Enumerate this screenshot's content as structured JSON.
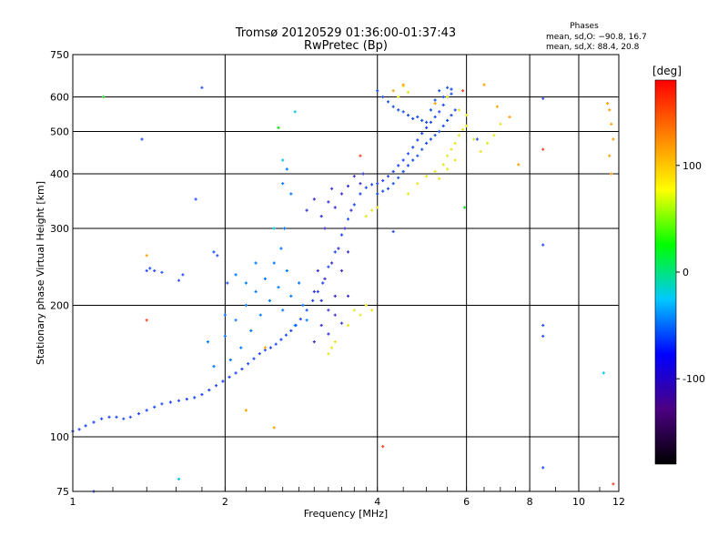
{
  "chart_data": {
    "type": "scatter",
    "title": "Tromsø 20120529 01:36:00-01:37:43",
    "subtitle": "RwPretec (Bp)",
    "xlabel": "Frequency [MHz]",
    "ylabel": "Stationary phase Virtual Height [km]",
    "x_scale": "log",
    "y_scale": "log",
    "xlim": [
      1,
      12
    ],
    "ylim": [
      75,
      750
    ],
    "x_ticks": [
      1,
      2,
      4,
      6,
      8,
      10,
      12
    ],
    "y_ticks": [
      75,
      100,
      200,
      300,
      400,
      500,
      600,
      750
    ],
    "grid": true,
    "phases_box": {
      "title": "Phases",
      "line1": "mean, sd,O: −90.8, 16.7",
      "line2": "mean, sd,X:  88.4, 20.8"
    },
    "colorbar": {
      "label": "[deg]",
      "range": [
        -180,
        180
      ],
      "ticks": [
        100,
        0,
        -100
      ],
      "colors": [
        "#000000",
        "#4b0082",
        "#0000ff",
        "#00c8ff",
        "#00ff00",
        "#ffff00",
        "#ff8000",
        "#ff0000"
      ]
    },
    "series": [
      {
        "mode": "O",
        "color": "#1e46ff",
        "points": [
          [
            1.0,
            103
          ],
          [
            1.03,
            104
          ],
          [
            1.06,
            106
          ],
          [
            1.1,
            108
          ],
          [
            1.14,
            110
          ],
          [
            1.18,
            111
          ],
          [
            1.22,
            111
          ],
          [
            1.26,
            110
          ],
          [
            1.3,
            111
          ],
          [
            1.35,
            113
          ],
          [
            1.4,
            115
          ],
          [
            1.45,
            117
          ],
          [
            1.5,
            119
          ],
          [
            1.56,
            120
          ],
          [
            1.62,
            121
          ],
          [
            1.68,
            122
          ],
          [
            1.74,
            123
          ],
          [
            1.8,
            125
          ],
          [
            1.86,
            128
          ],
          [
            1.92,
            131
          ],
          [
            1.98,
            134
          ],
          [
            2.04,
            137
          ],
          [
            2.1,
            140
          ],
          [
            2.16,
            143
          ],
          [
            2.22,
            147
          ],
          [
            2.28,
            151
          ],
          [
            2.34,
            155
          ],
          [
            2.4,
            158
          ],
          [
            2.46,
            160
          ],
          [
            2.52,
            163
          ],
          [
            2.58,
            167
          ],
          [
            2.64,
            171
          ],
          [
            2.7,
            175
          ],
          [
            2.76,
            180
          ],
          [
            2.82,
            186
          ],
          [
            2.9,
            195
          ],
          [
            2.98,
            205
          ],
          [
            3.05,
            215
          ],
          [
            3.12,
            225
          ],
          [
            3.2,
            245
          ],
          [
            3.3,
            265
          ],
          [
            3.4,
            290
          ],
          [
            3.5,
            315
          ],
          [
            3.6,
            340
          ],
          [
            3.7,
            360
          ],
          [
            3.8,
            372
          ],
          [
            3.9,
            378
          ],
          [
            4.0,
            380
          ],
          [
            4.1,
            386
          ],
          [
            4.2,
            395
          ],
          [
            4.3,
            405
          ],
          [
            4.4,
            418
          ],
          [
            4.5,
            430
          ],
          [
            4.6,
            445
          ],
          [
            4.7,
            460
          ],
          [
            4.8,
            478
          ],
          [
            4.9,
            495
          ],
          [
            5.0,
            510
          ],
          [
            5.1,
            525
          ],
          [
            5.2,
            540
          ],
          [
            5.3,
            555
          ],
          [
            5.4,
            575
          ],
          [
            5.5,
            600
          ],
          [
            5.6,
            625
          ]
        ]
      },
      {
        "mode": "O",
        "color": "#3c32d0",
        "points": [
          [
            3.0,
            215
          ],
          [
            3.05,
            240
          ],
          [
            3.1,
            205
          ],
          [
            3.15,
            230
          ],
          [
            3.2,
            195
          ],
          [
            3.25,
            250
          ],
          [
            3.3,
            210
          ],
          [
            3.35,
            270
          ],
          [
            3.4,
            240
          ],
          [
            3.45,
            300
          ],
          [
            3.5,
            265
          ],
          [
            3.55,
            330
          ],
          [
            3.1,
            320
          ],
          [
            3.2,
            345
          ],
          [
            3.3,
            335
          ],
          [
            3.4,
            360
          ],
          [
            3.5,
            375
          ],
          [
            3.6,
            395
          ],
          [
            3.7,
            380
          ],
          [
            3.75,
            400
          ],
          [
            3.0,
            165
          ],
          [
            3.1,
            180
          ],
          [
            3.2,
            172
          ],
          [
            3.3,
            190
          ],
          [
            3.4,
            182
          ],
          [
            3.5,
            210
          ],
          [
            2.9,
            330
          ],
          [
            3.0,
            350
          ],
          [
            3.15,
            300
          ],
          [
            3.25,
            370
          ]
        ]
      },
      {
        "mode": "O",
        "color": "#0078ff",
        "points": [
          [
            2.0,
            170
          ],
          [
            2.05,
            150
          ],
          [
            2.1,
            185
          ],
          [
            2.15,
            160
          ],
          [
            2.2,
            200
          ],
          [
            2.25,
            175
          ],
          [
            2.3,
            215
          ],
          [
            2.35,
            190
          ],
          [
            2.4,
            230
          ],
          [
            2.45,
            205
          ],
          [
            2.5,
            250
          ],
          [
            2.55,
            220
          ],
          [
            2.6,
            195
          ],
          [
            2.65,
            240
          ],
          [
            2.7,
            210
          ],
          [
            2.75,
            180
          ],
          [
            2.8,
            225
          ],
          [
            2.85,
            200
          ],
          [
            2.9,
            185
          ],
          [
            2.6,
            380
          ],
          [
            2.65,
            410
          ],
          [
            2.7,
            360
          ],
          [
            2.62,
            300
          ],
          [
            2.58,
            270
          ],
          [
            2.3,
            250
          ],
          [
            2.2,
            225
          ],
          [
            2.1,
            235
          ],
          [
            2.0,
            190
          ],
          [
            1.9,
            145
          ],
          [
            1.85,
            165
          ]
        ]
      },
      {
        "mode": "O",
        "color": "#1450e6",
        "points": [
          [
            4.0,
            620
          ],
          [
            4.1,
            600
          ],
          [
            4.2,
            585
          ],
          [
            4.3,
            570
          ],
          [
            4.4,
            560
          ],
          [
            4.5,
            555
          ],
          [
            4.6,
            545
          ],
          [
            4.7,
            535
          ],
          [
            4.8,
            540
          ],
          [
            4.9,
            530
          ],
          [
            5.0,
            525
          ],
          [
            5.1,
            560
          ],
          [
            5.2,
            590
          ],
          [
            5.3,
            620
          ],
          [
            5.4,
            600
          ],
          [
            5.5,
            630
          ],
          [
            5.6,
            610
          ],
          [
            4.0,
            360
          ],
          [
            4.1,
            365
          ],
          [
            4.2,
            370
          ],
          [
            4.3,
            380
          ],
          [
            4.4,
            392
          ],
          [
            4.5,
            405
          ],
          [
            4.6,
            418
          ],
          [
            4.7,
            430
          ],
          [
            4.8,
            440
          ],
          [
            4.9,
            455
          ],
          [
            5.0,
            470
          ],
          [
            5.1,
            480
          ],
          [
            5.2,
            490
          ],
          [
            5.3,
            500
          ],
          [
            5.4,
            515
          ],
          [
            5.5,
            530
          ],
          [
            5.6,
            545
          ],
          [
            5.7,
            560
          ]
        ]
      },
      {
        "mode": "X",
        "color": "#e6e61e",
        "points": [
          [
            4.6,
            360
          ],
          [
            4.8,
            380
          ],
          [
            5.0,
            395
          ],
          [
            5.2,
            405
          ],
          [
            5.4,
            420
          ],
          [
            5.5,
            440
          ],
          [
            5.6,
            455
          ],
          [
            5.7,
            470
          ],
          [
            5.8,
            490
          ],
          [
            5.9,
            505
          ],
          [
            6.0,
            515
          ],
          [
            6.2,
            480
          ],
          [
            6.4,
            450
          ],
          [
            6.6,
            470
          ],
          [
            6.8,
            490
          ],
          [
            7.0,
            520
          ],
          [
            5.3,
            390
          ],
          [
            5.5,
            410
          ],
          [
            5.7,
            430
          ],
          [
            3.6,
            195
          ],
          [
            3.7,
            190
          ],
          [
            3.8,
            200
          ],
          [
            3.9,
            195
          ],
          [
            3.5,
            180
          ],
          [
            3.2,
            155
          ],
          [
            3.25,
            160
          ],
          [
            3.3,
            165
          ],
          [
            3.8,
            320
          ],
          [
            3.9,
            330
          ],
          [
            4.0,
            335
          ],
          [
            4.5,
            635
          ],
          [
            4.6,
            615
          ],
          [
            4.4,
            600
          ],
          [
            5.5,
            600
          ],
          [
            5.8,
            560
          ],
          [
            6.0,
            545
          ]
        ]
      },
      {
        "mode": "X",
        "color": "#ffa000",
        "points": [
          [
            4.3,
            620
          ],
          [
            4.5,
            640
          ],
          [
            5.2,
            580
          ],
          [
            6.5,
            640
          ],
          [
            6.9,
            570
          ],
          [
            7.3,
            540
          ],
          [
            7.6,
            420
          ],
          [
            11.5,
            560
          ],
          [
            11.6,
            520
          ],
          [
            11.7,
            480
          ],
          [
            11.5,
            440
          ],
          [
            11.6,
            400
          ],
          [
            11.4,
            580
          ],
          [
            1.4,
            260
          ],
          [
            2.5,
            105
          ],
          [
            2.4,
            160
          ],
          [
            2.2,
            115
          ]
        ]
      },
      {
        "mode": "noise",
        "color": "#ff3c1e",
        "points": [
          [
            4.1,
            95
          ],
          [
            8.5,
            455
          ],
          [
            11.7,
            78
          ],
          [
            3.7,
            440
          ],
          [
            1.4,
            185
          ],
          [
            5.9,
            620
          ]
        ]
      },
      {
        "mode": "noise",
        "color": "#2850ff",
        "points": [
          [
            1.1,
            75
          ],
          [
            1.37,
            480
          ],
          [
            1.4,
            240
          ],
          [
            1.42,
            243
          ],
          [
            1.45,
            240
          ],
          [
            1.5,
            238
          ],
          [
            1.62,
            228
          ],
          [
            1.65,
            235
          ],
          [
            1.8,
            630
          ],
          [
            1.75,
            350
          ],
          [
            1.93,
            260
          ],
          [
            2.02,
            225
          ],
          [
            1.9,
            265
          ],
          [
            8.5,
            595
          ],
          [
            8.5,
            275
          ],
          [
            8.5,
            180
          ],
          [
            8.5,
            170
          ],
          [
            8.5,
            85
          ],
          [
            6.3,
            480
          ],
          [
            4.3,
            295
          ]
        ]
      },
      {
        "mode": "noise",
        "color": "#00c8e6",
        "points": [
          [
            1.62,
            80
          ],
          [
            2.75,
            555
          ],
          [
            2.6,
            430
          ],
          [
            2.5,
            300
          ],
          [
            11.2,
            140
          ]
        ]
      },
      {
        "mode": "noise",
        "color": "#1edc1e",
        "points": [
          [
            5.95,
            335
          ],
          [
            1.15,
            600
          ],
          [
            2.55,
            510
          ]
        ]
      }
    ]
  }
}
